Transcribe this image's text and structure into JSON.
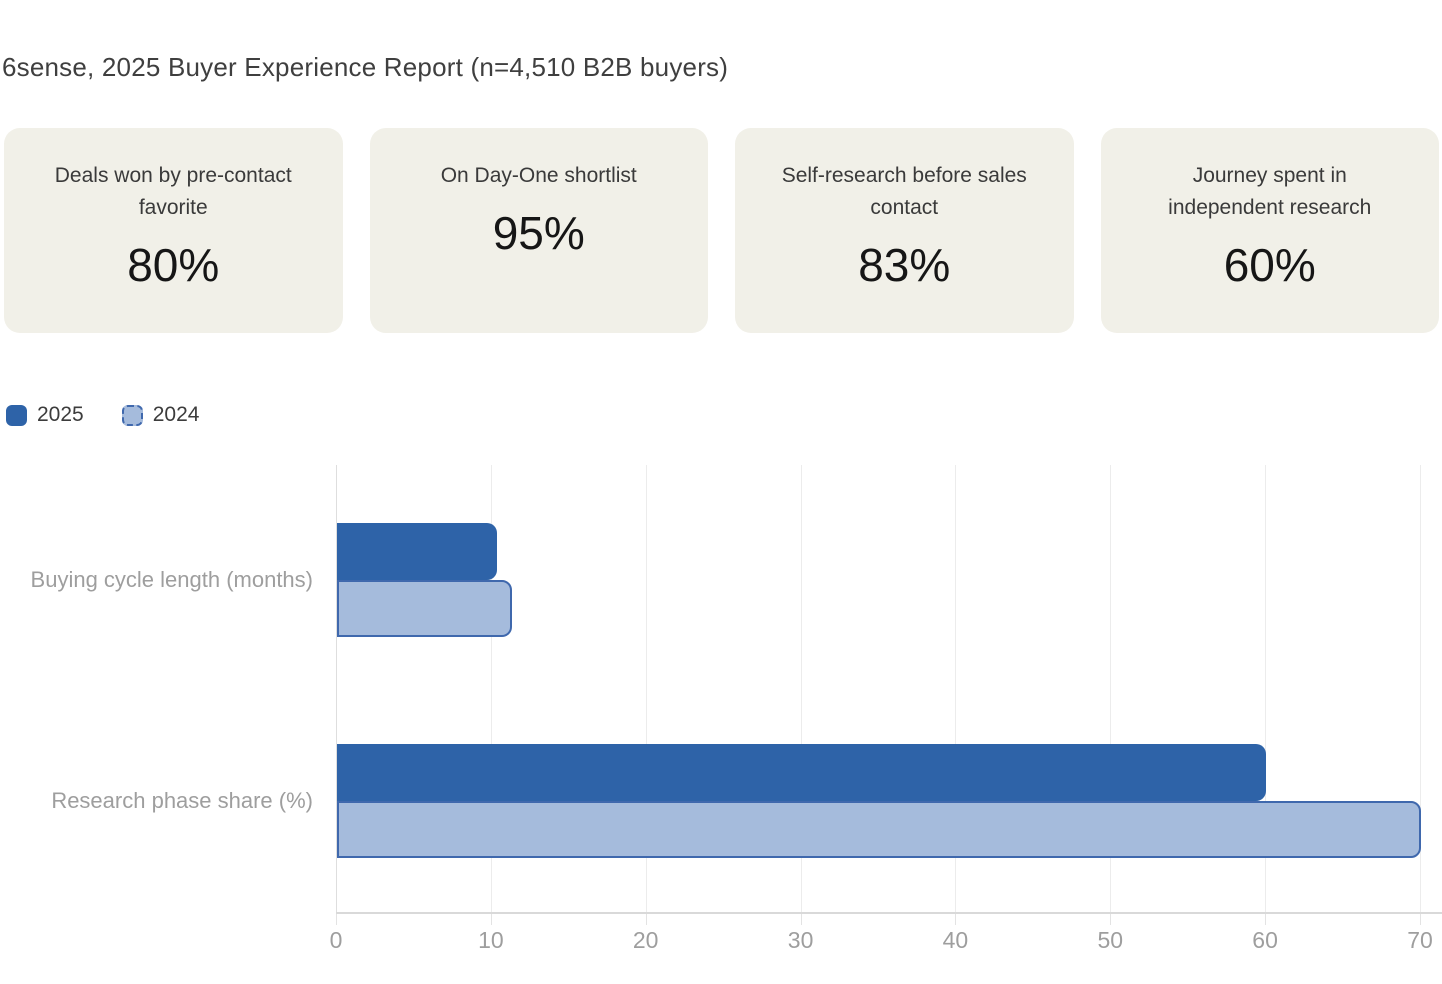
{
  "title": "6sense, 2025 Buyer Experience Report (n=4,510 B2B buyers)",
  "stat_cards": [
    {
      "label": "Deals won by pre-contact favorite",
      "value": "80%"
    },
    {
      "label": "On Day-One shortlist",
      "value": "95%"
    },
    {
      "label": "Self-research before sales contact",
      "value": "83%"
    },
    {
      "label": "Journey spent in independent research",
      "value": "60%"
    }
  ],
  "chart_data": {
    "type": "bar",
    "orientation": "horizontal",
    "categories": [
      "Buying cycle length (months)",
      "Research phase share (%)"
    ],
    "series": [
      {
        "name": "2025",
        "values": [
          10.3,
          60
        ],
        "color": "#2e63a8",
        "border_color": "#2e63a8"
      },
      {
        "name": "2024",
        "values": [
          11.3,
          70
        ],
        "color": "#a5bbdc",
        "border_color": "#3f68ad",
        "border_style": "dashed-legend"
      }
    ],
    "xlim": [
      0,
      70
    ],
    "xticks": [
      0,
      10,
      20,
      30,
      40,
      50,
      60,
      70
    ],
    "grid": true,
    "legend_position": "top-left",
    "xlabel": "",
    "ylabel": ""
  },
  "colors": {
    "card_background": "#f1f0e8",
    "series_2025": "#2e63a8",
    "series_2024_fill": "#a5bbdc",
    "series_2024_border": "#3f68ad",
    "text_primary": "#3a3a3a",
    "text_muted": "#9e9e9e",
    "gridline": "#ececec"
  }
}
